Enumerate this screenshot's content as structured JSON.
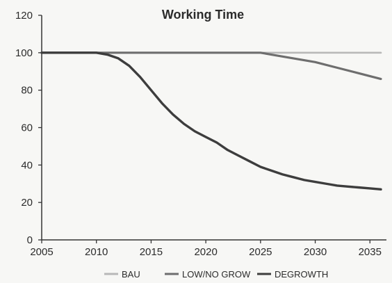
{
  "chart_data": {
    "type": "line",
    "title": "Working Time",
    "xlabel": "",
    "ylabel": "",
    "xlim": [
      2005,
      2036
    ],
    "ylim": [
      0,
      120
    ],
    "xticks": [
      2005,
      2010,
      2015,
      2020,
      2025,
      2030,
      2035
    ],
    "yticks": [
      0,
      20,
      40,
      60,
      80,
      100,
      120
    ],
    "grid": false,
    "legend_position": "bottom",
    "series": [
      {
        "name": "BAU",
        "color": "#b8b8b8",
        "x": [
          2005,
          2010,
          2015,
          2020,
          2025,
          2030,
          2035,
          2036
        ],
        "y": [
          100,
          100,
          100,
          100,
          100,
          100,
          100,
          100
        ]
      },
      {
        "name": "LOW/NO GROW",
        "color": "#6e6e6e",
        "x": [
          2005,
          2010,
          2015,
          2020,
          2025,
          2026,
          2028,
          2030,
          2032,
          2034,
          2036
        ],
        "y": [
          100,
          100,
          100,
          100,
          100,
          99,
          97,
          95,
          92,
          89,
          86
        ]
      },
      {
        "name": "DEGROWTH",
        "color": "#3d3d3d",
        "x": [
          2005,
          2010,
          2011,
          2012,
          2013,
          2014,
          2015,
          2016,
          2017,
          2018,
          2019,
          2020,
          2021,
          2022,
          2023,
          2024,
          2025,
          2026,
          2027,
          2028,
          2029,
          2030,
          2031,
          2032,
          2033,
          2034,
          2035,
          2036
        ],
        "y": [
          100,
          100,
          99,
          97,
          93,
          87,
          80,
          73,
          67,
          62,
          58,
          55,
          52,
          48,
          45,
          42,
          39,
          37,
          35,
          33.5,
          32,
          31,
          30,
          29,
          28.5,
          28,
          27.5,
          27
        ]
      }
    ]
  }
}
